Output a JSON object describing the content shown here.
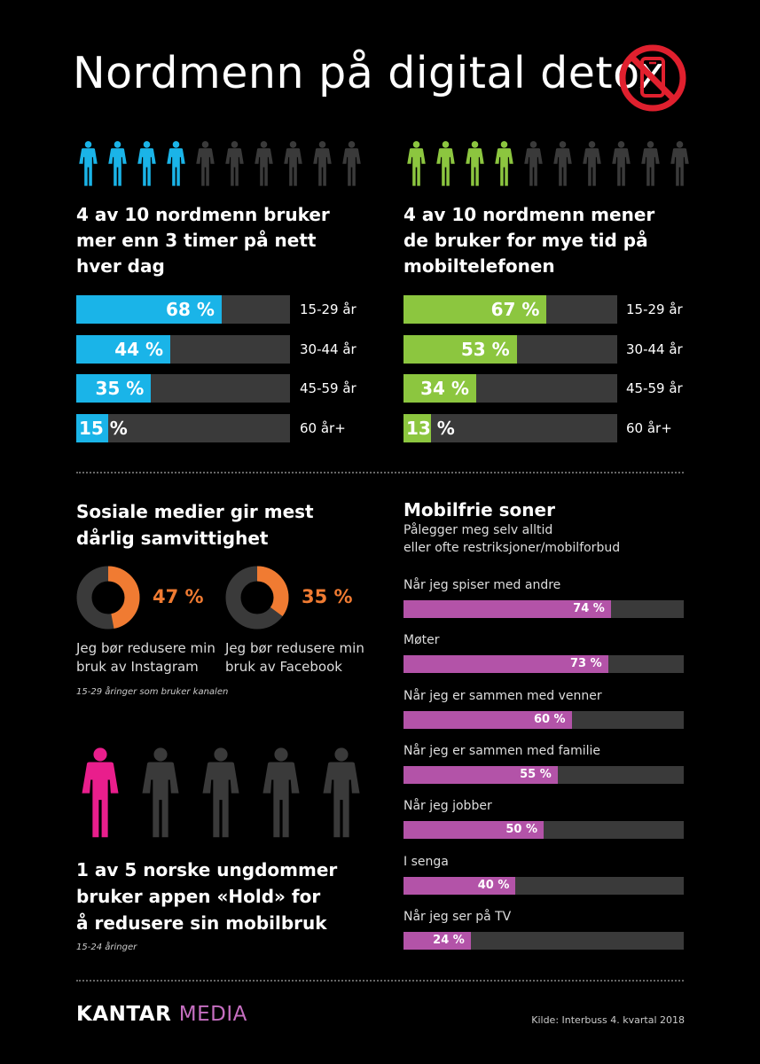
{
  "title": "Nordmenn på digital detox",
  "colors": {
    "blue": "#1ab4e8",
    "green": "#8cc63f",
    "orange": "#f07b32",
    "purple": "#b353a8",
    "pink": "#e91e8c",
    "gray": "#3a3a3a",
    "icon_red": "#e0202e"
  },
  "left_block": {
    "icon": "person-icon",
    "highlighted": 4,
    "total": 10,
    "headline": [
      "4 av 10 nordmenn bruker",
      "mer enn 3 timer på nett",
      "hver dag"
    ]
  },
  "right_block": {
    "icon": "person-icon",
    "highlighted": 4,
    "total": 10,
    "headline": [
      "4 av 10 nordmenn mener",
      "de bruker for mye tid på",
      "mobiltelefonen"
    ]
  },
  "donuts": {
    "headline": [
      "Sosiale medier gir mest",
      "dårlig samvittighet"
    ],
    "items": [
      {
        "value": 47,
        "pct_label": "47 %",
        "caption": [
          "Jeg bør redusere min",
          "bruk av Instagram"
        ]
      },
      {
        "value": 35,
        "pct_label": "35 %",
        "caption": [
          "Jeg bør redusere min",
          "bruk av Facebook"
        ]
      }
    ],
    "note": "15-29 åringer som bruker kanalen"
  },
  "mobilfrie": {
    "headline": "Mobilfrie soner",
    "sub": [
      "Pålegger meg selv alltid",
      "eller ofte restriksjoner/mobilforbud"
    ]
  },
  "hold": {
    "highlighted": 1,
    "total": 5,
    "headline": [
      "1 av 5 norske ungdommer",
      "bruker appen «Hold» for",
      "å redusere sin mobilbruk"
    ],
    "note": "15-24 åringer"
  },
  "logo": {
    "part1": "KANTAR ",
    "part2": "MEDIA"
  },
  "source": "Kilde: Interbuss 4. kvartal 2018",
  "chart_data": [
    {
      "type": "bar",
      "categories": [
        "15-29 år",
        "30-44 år",
        "45-59 år",
        "60 år+"
      ],
      "values": [
        68,
        44,
        35,
        15
      ],
      "value_labels": [
        "68 %",
        "44 %",
        "35 %",
        "15 %"
      ],
      "xlim": [
        0,
        100
      ],
      "color": "#1ab4e8"
    },
    {
      "type": "bar",
      "categories": [
        "15-29 år",
        "30-44 år",
        "45-59 år",
        "60 år+"
      ],
      "values": [
        67,
        53,
        34,
        13
      ],
      "value_labels": [
        "67 %",
        "53 %",
        "34 %",
        "13 %"
      ],
      "xlim": [
        0,
        100
      ],
      "color": "#8cc63f"
    },
    {
      "type": "pie",
      "values": [
        47,
        35
      ],
      "labels": [
        "Instagram",
        "Facebook"
      ]
    },
    {
      "type": "bar",
      "categories": [
        "Når jeg spiser med andre",
        "Møter",
        "Når jeg er sammen med venner",
        "Når jeg er sammen med familie",
        "Når jeg jobber",
        "I senga",
        "Når jeg ser på TV"
      ],
      "values": [
        74,
        73,
        60,
        55,
        50,
        40,
        24
      ],
      "value_labels": [
        "74 %",
        "73 %",
        "60 %",
        "55 %",
        "50 %",
        "40 %",
        "24 %"
      ],
      "xlim": [
        0,
        100
      ],
      "color": "#b353a8"
    }
  ]
}
